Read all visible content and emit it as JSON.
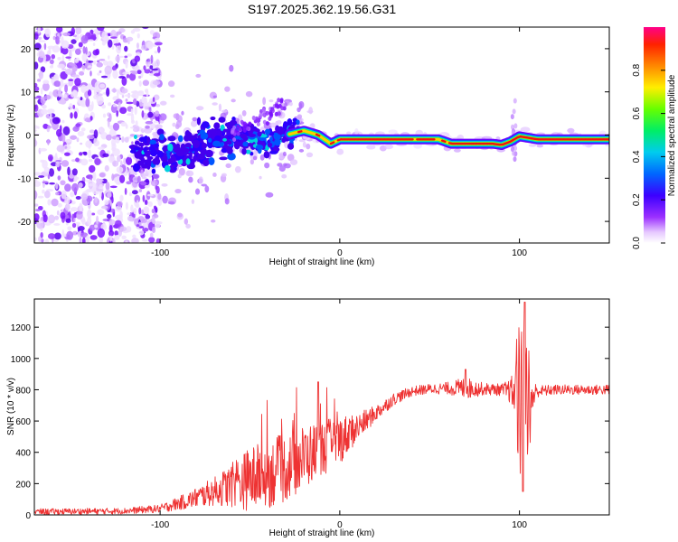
{
  "title": "S197.2025.362.19.56.G31",
  "chart_data": [
    {
      "type": "heatmap",
      "name": "spectrogram",
      "xlabel": "Height of straight line (km)",
      "ylabel": "Frequency (Hz)",
      "xlim": [
        -170,
        150
      ],
      "ylim": [
        -25,
        25
      ],
      "xticks": [
        -100,
        0,
        100
      ],
      "yticks": [
        20,
        10,
        0,
        -10,
        -20
      ],
      "grid": false,
      "ridge": {
        "x": [
          -115,
          -100,
          -85,
          -70,
          -55,
          -40,
          -30,
          -20,
          -12,
          -5,
          0,
          10,
          30,
          55,
          62,
          75,
          85,
          90,
          95,
          100,
          110,
          130,
          150
        ],
        "freq": [
          -4,
          -4,
          -3,
          -1,
          0,
          -2,
          0,
          1,
          0,
          -2,
          -1,
          -1,
          -1,
          -1,
          -2,
          -2,
          -2,
          -2.3,
          -1.5,
          -0.3,
          -1,
          -1,
          -1
        ]
      },
      "colorbar": {
        "label": "Normalized spectral amplitude",
        "range": [
          0,
          1
        ],
        "ticks": [
          0.0,
          0.2,
          0.4,
          0.6,
          0.8
        ]
      }
    },
    {
      "type": "line",
      "name": "snr",
      "xlabel": "Height of straight line (km)",
      "ylabel": "SNR (10 * v/v)",
      "xlim": [
        -170,
        150
      ],
      "ylim": [
        0,
        1380
      ],
      "xticks": [
        -100,
        0,
        100
      ],
      "yticks": [
        0,
        200,
        400,
        600,
        800,
        1000,
        1200
      ],
      "grid": false,
      "color": "#ee3333",
      "series": {
        "name": "SNR",
        "envelope": {
          "x": [
            -170,
            -120,
            -100,
            -85,
            -70,
            -60,
            -50,
            -40,
            -30,
            -20,
            -10,
            0,
            10,
            20,
            30,
            40,
            50,
            60,
            70,
            80,
            90,
            95,
            100,
            103,
            110,
            120,
            130,
            150
          ],
          "mean": [
            20,
            25,
            40,
            90,
            150,
            190,
            230,
            260,
            300,
            370,
            420,
            480,
            560,
            650,
            740,
            790,
            805,
            810,
            810,
            805,
            800,
            790,
            750,
            700,
            790,
            800,
            800,
            800
          ],
          "noise": [
            15,
            15,
            20,
            40,
            70,
            110,
            160,
            170,
            170,
            160,
            140,
            120,
            70,
            40,
            30,
            25,
            25,
            30,
            55,
            30,
            30,
            60,
            220,
            200,
            30,
            25,
            25,
            25
          ]
        },
        "notable_points": [
          {
            "x": 103,
            "y": 1360
          },
          {
            "x": 102,
            "y": 150
          },
          {
            "x": -12,
            "y": 850
          },
          {
            "x": 70,
            "y": 930
          }
        ]
      }
    }
  ]
}
